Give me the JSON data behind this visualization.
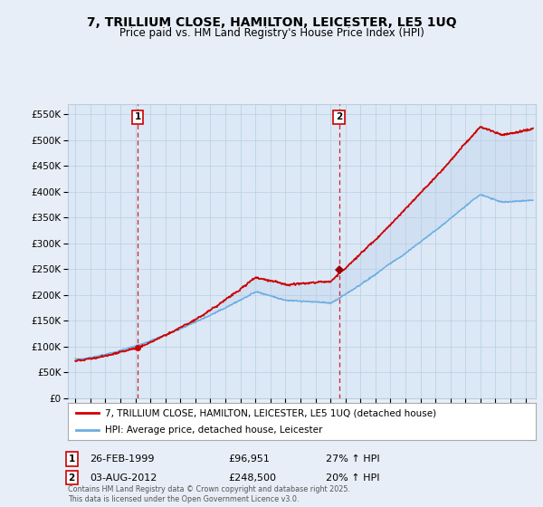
{
  "title": "7, TRILLIUM CLOSE, HAMILTON, LEICESTER, LE5 1UQ",
  "subtitle": "Price paid vs. HM Land Registry's House Price Index (HPI)",
  "background_color": "#e8eef7",
  "plot_bg_color": "#dce8f5",
  "fill_color": "#c5d8f0",
  "red_color": "#cc0000",
  "blue_color": "#6aaee0",
  "vline_color": "#cc0000",
  "grid_color": "#b8cfe0",
  "legend_line1": "7, TRILLIUM CLOSE, HAMILTON, LEICESTER, LE5 1UQ (detached house)",
  "legend_line2": "HPI: Average price, detached house, Leicester",
  "footer": "Contains HM Land Registry data © Crown copyright and database right 2025.\nThis data is licensed under the Open Government Licence v3.0.",
  "sale1_x": 1999.15,
  "sale1_price": 96951,
  "sale2_x": 2012.58,
  "sale2_price": 248500,
  "ylim": [
    0,
    570000
  ],
  "yticks": [
    0,
    50000,
    100000,
    150000,
    200000,
    250000,
    300000,
    350000,
    400000,
    450000,
    500000,
    550000
  ],
  "xlim_min": 1994.5,
  "xlim_max": 2025.7
}
